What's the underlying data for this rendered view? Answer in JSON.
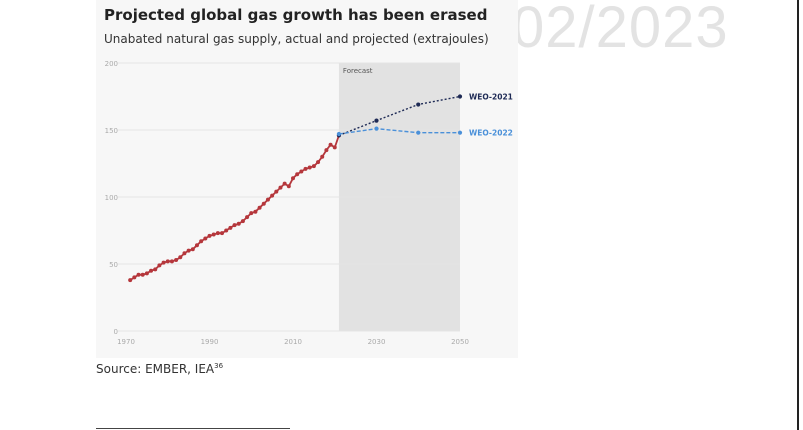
{
  "background_year": "02/2023",
  "chart_data": {
    "type": "line",
    "title": "Projected global gas growth has been erased",
    "subtitle": "Unabated natural gas supply, actual and projected (extrajoules)",
    "xlabel": "",
    "ylabel": "",
    "xlim": [
      1970,
      2050
    ],
    "ylim": [
      0,
      200
    ],
    "x_ticks": [
      "1970",
      "1990",
      "2010",
      "2030",
      "2050"
    ],
    "y_ticks": [
      "0",
      "50",
      "100",
      "150",
      "200"
    ],
    "grid": true,
    "shaded_region": {
      "from": 2021,
      "to": 2050,
      "label": "Forecast"
    },
    "series": [
      {
        "name": "",
        "style": "solid",
        "color": "#b5373c",
        "x": [
          1971,
          1972,
          1973,
          1974,
          1975,
          1976,
          1977,
          1978,
          1979,
          1980,
          1981,
          1982,
          1983,
          1984,
          1985,
          1986,
          1987,
          1988,
          1989,
          1990,
          1991,
          1992,
          1993,
          1994,
          1995,
          1996,
          1997,
          1998,
          1999,
          2000,
          2001,
          2002,
          2003,
          2004,
          2005,
          2006,
          2007,
          2008,
          2009,
          2010,
          2011,
          2012,
          2013,
          2014,
          2015,
          2016,
          2017,
          2018,
          2019,
          2020,
          2021
        ],
        "y": [
          38,
          40,
          42,
          42,
          43,
          45,
          46,
          49,
          51,
          52,
          52,
          53,
          55,
          58,
          60,
          61,
          64,
          67,
          69,
          71,
          72,
          73,
          73,
          75,
          77,
          79,
          80,
          82,
          85,
          88,
          89,
          92,
          95,
          98,
          101,
          104,
          107,
          110,
          108,
          114,
          117,
          119,
          121,
          122,
          123,
          126,
          130,
          135,
          139,
          137,
          146
        ]
      },
      {
        "name": "WEO-2021",
        "style": "dotted",
        "color": "#1e2a55",
        "x": [
          2021,
          2030,
          2040,
          2050
        ],
        "y": [
          146,
          157,
          169,
          175
        ]
      },
      {
        "name": "WEO-2022",
        "style": "dashed",
        "color": "#4a90d9",
        "x": [
          2021,
          2030,
          2040,
          2050
        ],
        "y": [
          147,
          151,
          148,
          148
        ]
      }
    ]
  },
  "source": {
    "text": "Source: EMBER, IEA",
    "ref": "36"
  }
}
